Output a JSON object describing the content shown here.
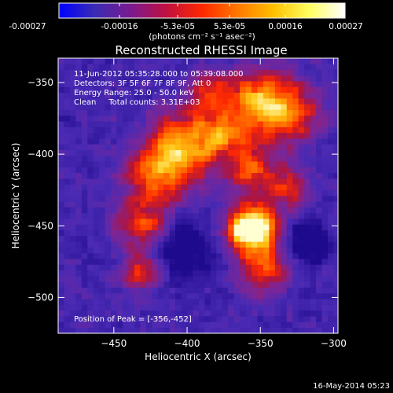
{
  "colorbar": {
    "tick_labels": [
      "-0.00027",
      "-0.00016",
      "-5.3e-05",
      "5.3e-05",
      "0.00016",
      "0.00027"
    ],
    "units": "(photons cm⁻² s⁻¹ asec⁻²)",
    "colormap_stops": [
      "#0000ff",
      "#3a2cb4",
      "#7a1a90",
      "#c01040",
      "#ff2800",
      "#ff7800",
      "#ffc000",
      "#ffff60",
      "#ffffff"
    ]
  },
  "chart_data": {
    "type": "heatmap",
    "title": "Reconstructed RHESSI Image",
    "xlabel": "Heliocentric X (arcsec)",
    "ylabel": "Heliocentric Y (arcsec)",
    "xlim": [
      -488,
      -297
    ],
    "ylim": [
      -525,
      -333
    ],
    "x_ticks": [
      -450,
      -400,
      -350,
      -300
    ],
    "y_ticks": [
      -350,
      -400,
      -450,
      -500
    ],
    "annotations": [
      "11-Jun-2012 05:35:28.000 to 05:39:08.000",
      "Detectors: 3F 5F 6F 7F 8F 9F, Att 0",
      "Energy Range: 25.0 - 50.0 keV",
      "Clean     Total counts: 3.31E+03"
    ],
    "peak_label": "Position of Peak = [-356,-452]",
    "peak": [
      -356,
      -452
    ],
    "grid": false,
    "pixel_size_arcsec": 4
  },
  "footer": {
    "timestamp": "16-May-2014 05:23"
  }
}
